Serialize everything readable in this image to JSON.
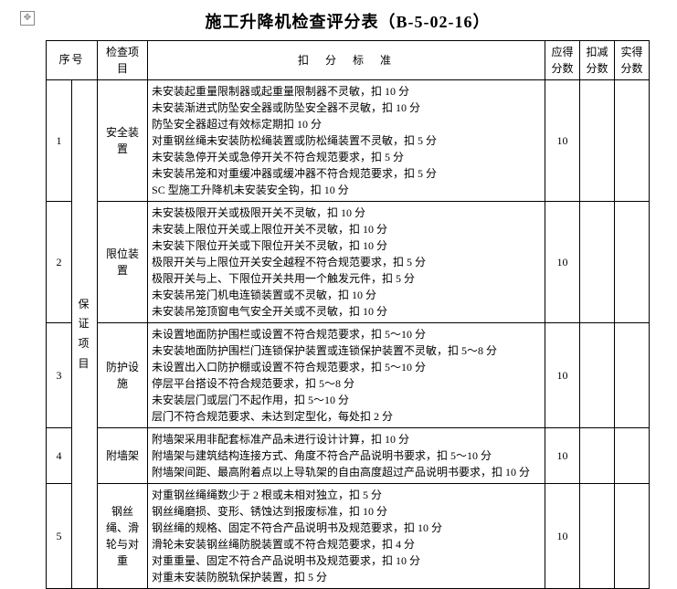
{
  "title": "施工升降机检查评分表（B-5-02-16）",
  "headers": {
    "seq": "序号",
    "item": "检查项目",
    "criteria": "扣分标准",
    "deserved": "应得分数",
    "deduct": "扣减分数",
    "actual": "实得分数"
  },
  "category": "保证项目",
  "rows": [
    {
      "seq": "1",
      "item": "安全装置",
      "criteria": [
        "未安装起重量限制器或起重量限制器不灵敏，扣 10 分",
        "未安装渐进式防坠安全器或防坠安全器不灵敏，扣 10 分",
        "防坠安全器超过有效标定期扣 10 分",
        "对重钢丝绳未安装防松绳装置或防松绳装置不灵敏，扣 5 分",
        "未安装急停开关或急停开关不符合规范要求，扣 5 分",
        "未安装吊笼和对重缓冲器或缓冲器不符合规范要求，扣 5 分",
        "SC 型施工升降机未安装安全钩，扣 10 分"
      ],
      "deserved": "10"
    },
    {
      "seq": "2",
      "item": "限位装置",
      "criteria": [
        "未安装极限开关或极限开关不灵敏，扣 10 分",
        "未安装上限位开关或上限位开关不灵敏，扣 10 分",
        "未安装下限位开关或下限位开关不灵敏，扣 10 分",
        "极限开关与上限位开关安全越程不符合规范要求，扣 5 分",
        "极限开关与上、下限位开关共用一个触发元件，扣 5 分",
        "未安装吊笼门机电连锁装置或不灵敏，扣 10 分",
        "未安装吊笼顶窗电气安全开关或不灵敏，扣 10 分"
      ],
      "deserved": "10"
    },
    {
      "seq": "3",
      "item": "防护设施",
      "criteria": [
        "未设置地面防护围栏或设置不符合规范要求，扣 5～10 分",
        "未安装地面防护围栏门连锁保护装置或连锁保护装置不灵敏，扣 5～8 分",
        "未设置出入口防护棚或设置不符合规范要求，扣 5～10 分",
        "停层平台搭设不符合规范要求，扣 5～8 分",
        "未安装层门或层门不起作用，扣 5～10 分",
        "层门不符合规范要求、未达到定型化，每处扣 2 分"
      ],
      "deserved": "10"
    },
    {
      "seq": "4",
      "item": "附墙架",
      "criteria": [
        "附墙架采用非配套标准产品未进行设计计算，扣 10 分",
        "附墙架与建筑结构连接方式、角度不符合产品说明书要求，扣 5～10 分",
        "附墙架间距、最高附着点以上导轨架的自由高度超过产品说明书要求，扣 10 分"
      ],
      "deserved": "10"
    },
    {
      "seq": "5",
      "item": "钢丝绳、滑轮与对重",
      "criteria": [
        "对重钢丝绳绳数少于 2 根或未相对独立，扣 5 分",
        "钢丝绳磨损、变形、锈蚀达到报废标准，扣 10 分",
        "钢丝绳的规格、固定不符合产品说明书及规范要求，扣 10 分",
        "滑轮未安装钢丝绳防脱装置或不符合规范要求，扣 4 分",
        "对重重量、固定不符合产品说明书及规范要求，扣 10 分",
        "对重未安装防脱轨保护装置，扣 5 分"
      ],
      "deserved": "10"
    }
  ]
}
